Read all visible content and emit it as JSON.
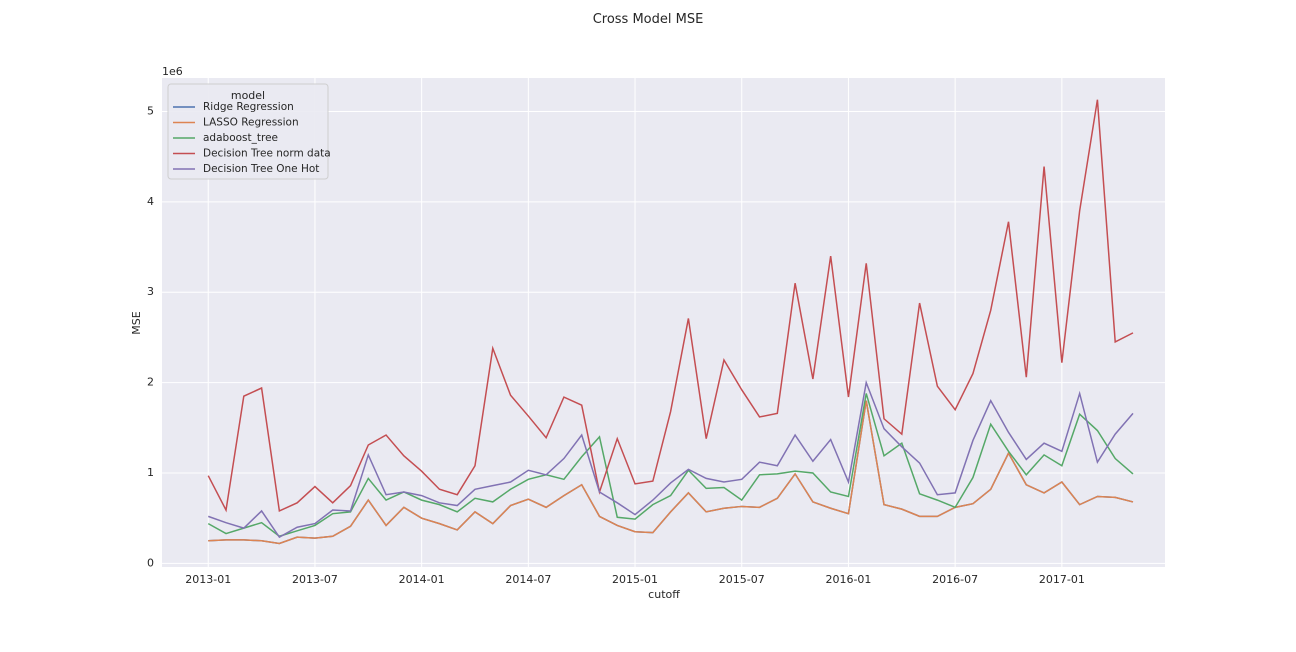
{
  "chart_data": {
    "type": "line",
    "title": "Cross Model MSE",
    "xlabel": "cutoff",
    "ylabel": "MSE",
    "offset_label": "1e6",
    "legend_title": "model",
    "legend": "upper left",
    "grid": true,
    "x": [
      "2013-01",
      "2013-02",
      "2013-03",
      "2013-04",
      "2013-05",
      "2013-06",
      "2013-07",
      "2013-08",
      "2013-09",
      "2013-10",
      "2013-11",
      "2013-12",
      "2014-01",
      "2014-02",
      "2014-03",
      "2014-04",
      "2014-05",
      "2014-06",
      "2014-07",
      "2014-08",
      "2014-09",
      "2014-10",
      "2014-11",
      "2014-12",
      "2015-01",
      "2015-02",
      "2015-03",
      "2015-04",
      "2015-05",
      "2015-06",
      "2015-07",
      "2015-08",
      "2015-09",
      "2015-10",
      "2015-11",
      "2015-12",
      "2016-01",
      "2016-02",
      "2016-03",
      "2016-04",
      "2016-05",
      "2016-06",
      "2016-07",
      "2016-08",
      "2016-09",
      "2016-10",
      "2016-11",
      "2016-12",
      "2017-01",
      "2017-02",
      "2017-03",
      "2017-04",
      "2017-05"
    ],
    "xticks": [
      "2013-01",
      "2013-07",
      "2014-01",
      "2014-07",
      "2015-01",
      "2015-07",
      "2016-01",
      "2016-07",
      "2017-01"
    ],
    "ylim": [
      -0.04,
      5.37
    ],
    "yticks": [
      0,
      1,
      2,
      3,
      4,
      5
    ],
    "series": [
      {
        "name": "Ridge Regression",
        "color": "#4c72b0",
        "values": [
          0.25,
          0.26,
          0.26,
          0.25,
          0.22,
          0.29,
          0.28,
          0.3,
          0.41,
          0.7,
          0.42,
          0.62,
          0.5,
          0.44,
          0.37,
          0.57,
          0.44,
          0.64,
          0.71,
          0.62,
          0.75,
          0.87,
          0.52,
          0.42,
          0.35,
          0.34,
          0.57,
          0.78,
          0.57,
          0.61,
          0.63,
          0.62,
          0.72,
          0.99,
          0.68,
          0.61,
          0.55,
          1.8,
          0.65,
          0.6,
          0.52,
          0.52,
          0.62,
          0.66,
          0.82,
          1.22,
          0.87,
          0.78,
          0.9,
          0.65,
          0.74,
          0.73,
          0.68
        ]
      },
      {
        "name": "LASSO Regression",
        "color": "#dd8452",
        "values": [
          0.25,
          0.26,
          0.26,
          0.25,
          0.22,
          0.29,
          0.28,
          0.3,
          0.41,
          0.7,
          0.42,
          0.62,
          0.5,
          0.44,
          0.37,
          0.57,
          0.44,
          0.64,
          0.71,
          0.62,
          0.75,
          0.87,
          0.52,
          0.42,
          0.35,
          0.34,
          0.57,
          0.78,
          0.57,
          0.61,
          0.63,
          0.62,
          0.72,
          0.99,
          0.68,
          0.61,
          0.55,
          1.8,
          0.65,
          0.6,
          0.52,
          0.52,
          0.62,
          0.66,
          0.82,
          1.22,
          0.87,
          0.78,
          0.9,
          0.65,
          0.74,
          0.73,
          0.68
        ]
      },
      {
        "name": "adaboost_tree",
        "color": "#55a868",
        "values": [
          0.44,
          0.33,
          0.39,
          0.45,
          0.3,
          0.36,
          0.42,
          0.55,
          0.57,
          0.94,
          0.7,
          0.79,
          0.7,
          0.65,
          0.57,
          0.72,
          0.68,
          0.82,
          0.93,
          0.98,
          0.93,
          1.18,
          1.4,
          0.51,
          0.49,
          0.65,
          0.75,
          1.03,
          0.83,
          0.84,
          0.7,
          0.98,
          0.99,
          1.02,
          1.0,
          0.79,
          0.74,
          1.88,
          1.19,
          1.33,
          0.77,
          0.7,
          0.62,
          0.95,
          1.54,
          1.24,
          0.98,
          1.2,
          1.08,
          1.65,
          1.47,
          1.16,
          0.99
        ]
      },
      {
        "name": "Decision Tree norm data",
        "color": "#c44e52",
        "values": [
          0.97,
          0.59,
          1.85,
          1.94,
          0.58,
          0.67,
          0.85,
          0.67,
          0.86,
          1.31,
          1.42,
          1.19,
          1.02,
          0.82,
          0.76,
          1.08,
          2.38,
          1.86,
          1.63,
          1.39,
          1.84,
          1.75,
          0.79,
          1.38,
          0.88,
          0.91,
          1.68,
          2.71,
          1.38,
          2.25,
          1.92,
          1.62,
          1.66,
          3.1,
          2.04,
          3.4,
          1.84,
          3.32,
          1.6,
          1.43,
          2.88,
          1.96,
          1.7,
          2.1,
          2.8,
          3.78,
          2.06,
          4.39,
          2.22,
          3.9,
          5.13,
          2.45,
          2.55
        ]
      },
      {
        "name": "Decision Tree One Hot",
        "color": "#8172b3",
        "values": [
          0.52,
          0.45,
          0.39,
          0.58,
          0.29,
          0.4,
          0.44,
          0.59,
          0.58,
          1.2,
          0.76,
          0.79,
          0.75,
          0.67,
          0.64,
          0.82,
          0.86,
          0.9,
          1.03,
          0.98,
          1.16,
          1.42,
          0.79,
          0.67,
          0.54,
          0.7,
          0.89,
          1.04,
          0.94,
          0.9,
          0.93,
          1.12,
          1.08,
          1.42,
          1.13,
          1.37,
          0.9,
          2.0,
          1.49,
          1.29,
          1.11,
          0.76,
          0.78,
          1.36,
          1.8,
          1.45,
          1.15,
          1.33,
          1.24,
          1.88,
          1.12,
          1.43,
          1.66
        ]
      }
    ]
  }
}
